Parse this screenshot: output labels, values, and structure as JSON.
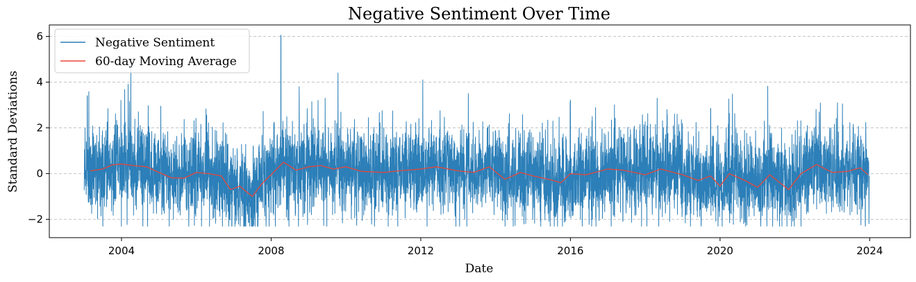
{
  "chart_data": {
    "type": "line",
    "title": "Negative Sentiment Over Time",
    "xlabel": "Date",
    "ylabel": "Standard Deviations",
    "x_range": [
      "2002-01-26",
      "2025-02-02"
    ],
    "ylim": [
      -2.8,
      6.5
    ],
    "x_ticks": [
      {
        "label": "2004",
        "date": "2004-01-01"
      },
      {
        "label": "2008",
        "date": "2008-01-01"
      },
      {
        "label": "2012",
        "date": "2012-01-01"
      },
      {
        "label": "2016",
        "date": "2016-01-01"
      },
      {
        "label": "2020",
        "date": "2020-01-01"
      },
      {
        "label": "2024",
        "date": "2024-01-01"
      }
    ],
    "y_ticks": [
      {
        "label": "−2",
        "value": -2
      },
      {
        "label": "0",
        "value": 0
      },
      {
        "label": "2",
        "value": 2
      },
      {
        "label": "4",
        "value": 4
      },
      {
        "label": "6",
        "value": 6
      }
    ],
    "grid": "y-dashed",
    "legend_position": "top-left",
    "series": [
      {
        "name": "Negative Sentiment",
        "color": "#2c7fb8",
        "kind": "daily-noise",
        "start": "2003-01-02",
        "end": "2023-12-29",
        "clip_min": -2.3,
        "annotated_peaks": [
          {
            "date": "2003-02-01",
            "value": 3.4
          },
          {
            "date": "2004-03-05",
            "value": 3.9
          },
          {
            "date": "2004-04-01",
            "value": 4.8
          },
          {
            "date": "2008-04-05",
            "value": 6.05
          },
          {
            "date": "2008-10-01",
            "value": 3.8
          },
          {
            "date": "2009-10-15",
            "value": 4.4
          },
          {
            "date": "2012-01-20",
            "value": 4.1
          },
          {
            "date": "2013-04-10",
            "value": 3.5
          },
          {
            "date": "2018-08-01",
            "value": 2.8
          },
          {
            "date": "2019-10-01",
            "value": 2.85
          },
          {
            "date": "2023-04-10",
            "value": 3.05
          }
        ]
      },
      {
        "name": "60-day Moving Average",
        "color": "#e8473a",
        "points": [
          [
            "2003-03-01",
            0.12
          ],
          [
            "2003-07-01",
            0.2
          ],
          [
            "2003-10-01",
            0.38
          ],
          [
            "2004-01-01",
            0.42
          ],
          [
            "2004-05-01",
            0.35
          ],
          [
            "2004-09-01",
            0.3
          ],
          [
            "2005-01-01",
            0.05
          ],
          [
            "2005-05-01",
            -0.18
          ],
          [
            "2005-09-01",
            -0.2
          ],
          [
            "2006-01-01",
            0.05
          ],
          [
            "2006-05-01",
            0.0
          ],
          [
            "2006-09-01",
            -0.1
          ],
          [
            "2006-12-01",
            -0.7
          ],
          [
            "2007-03-01",
            -0.55
          ],
          [
            "2007-07-01",
            -1.0
          ],
          [
            "2007-10-01",
            -0.45
          ],
          [
            "2008-01-01",
            -0.05
          ],
          [
            "2008-05-01",
            0.5
          ],
          [
            "2008-09-01",
            0.15
          ],
          [
            "2009-01-01",
            0.3
          ],
          [
            "2009-05-01",
            0.35
          ],
          [
            "2009-09-01",
            0.2
          ],
          [
            "2010-01-01",
            0.3
          ],
          [
            "2010-06-01",
            0.1
          ],
          [
            "2011-01-01",
            0.05
          ],
          [
            "2011-06-01",
            0.12
          ],
          [
            "2012-01-01",
            0.2
          ],
          [
            "2012-06-01",
            0.3
          ],
          [
            "2013-01-01",
            0.12
          ],
          [
            "2013-06-01",
            0.05
          ],
          [
            "2013-11-01",
            0.3
          ],
          [
            "2014-04-01",
            -0.25
          ],
          [
            "2014-09-01",
            0.05
          ],
          [
            "2015-01-01",
            -0.1
          ],
          [
            "2015-06-01",
            -0.25
          ],
          [
            "2015-10-01",
            -0.4
          ],
          [
            "2016-01-01",
            0.0
          ],
          [
            "2016-06-01",
            -0.05
          ],
          [
            "2017-01-01",
            0.2
          ],
          [
            "2017-06-01",
            0.15
          ],
          [
            "2018-01-01",
            -0.05
          ],
          [
            "2018-06-01",
            0.2
          ],
          [
            "2019-01-01",
            -0.05
          ],
          [
            "2019-06-01",
            -0.3
          ],
          [
            "2019-10-01",
            -0.1
          ],
          [
            "2020-01-01",
            -0.55
          ],
          [
            "2020-04-01",
            0.0
          ],
          [
            "2020-09-01",
            -0.3
          ],
          [
            "2021-01-01",
            -0.6
          ],
          [
            "2021-05-01",
            -0.05
          ],
          [
            "2021-11-01",
            -0.7
          ],
          [
            "2022-03-01",
            0.0
          ],
          [
            "2022-08-01",
            0.4
          ],
          [
            "2023-01-01",
            0.05
          ],
          [
            "2023-06-01",
            0.1
          ],
          [
            "2023-10-01",
            0.25
          ],
          [
            "2023-12-15",
            -0.05
          ]
        ]
      }
    ]
  }
}
